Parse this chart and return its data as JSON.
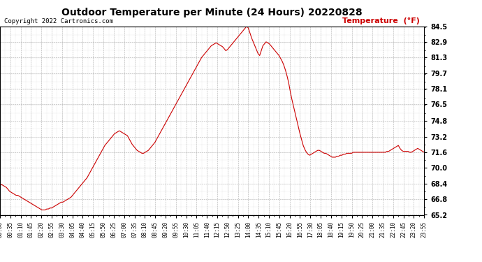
{
  "title": "Outdoor Temperature per Minute (24 Hours) 20220828",
  "copyright_text": "Copyright 2022 Cartronics.com",
  "legend_text": "Temperature  (°F)",
  "line_color": "#cc0000",
  "background_color": "#ffffff",
  "grid_color": "#999999",
  "yticks": [
    65.2,
    66.8,
    68.4,
    70.0,
    71.6,
    73.2,
    74.8,
    76.5,
    78.1,
    79.7,
    81.3,
    82.9,
    84.5
  ],
  "ylim": [
    65.2,
    84.5
  ],
  "xtick_labels": [
    "00:00",
    "00:35",
    "01:10",
    "01:45",
    "02:20",
    "02:55",
    "03:30",
    "04:05",
    "04:40",
    "05:15",
    "05:50",
    "06:25",
    "07:00",
    "07:35",
    "08:10",
    "08:45",
    "09:20",
    "09:55",
    "10:30",
    "11:05",
    "11:40",
    "12:15",
    "12:50",
    "13:25",
    "14:00",
    "14:35",
    "15:10",
    "15:45",
    "16:20",
    "16:55",
    "17:30",
    "18:05",
    "18:40",
    "19:15",
    "19:50",
    "20:25",
    "21:00",
    "21:35",
    "22:10",
    "22:45",
    "23:20",
    "23:55"
  ],
  "temperature_data": [
    68.2,
    68.3,
    68.2,
    68.1,
    68.0,
    67.8,
    67.6,
    67.5,
    67.4,
    67.3,
    67.2,
    67.2,
    67.1,
    67.0,
    66.9,
    66.8,
    66.7,
    66.6,
    66.5,
    66.4,
    66.3,
    66.2,
    66.1,
    66.0,
    65.9,
    65.8,
    65.7,
    65.7,
    65.7,
    65.8,
    65.8,
    65.9,
    65.9,
    66.0,
    66.1,
    66.2,
    66.3,
    66.4,
    66.5,
    66.5,
    66.6,
    66.7,
    66.8,
    66.9,
    67.0,
    67.2,
    67.4,
    67.6,
    67.8,
    68.0,
    68.2,
    68.4,
    68.6,
    68.8,
    69.0,
    69.3,
    69.6,
    69.9,
    70.2,
    70.5,
    70.8,
    71.1,
    71.4,
    71.7,
    72.0,
    72.3,
    72.5,
    72.7,
    72.9,
    73.1,
    73.3,
    73.5,
    73.6,
    73.7,
    73.8,
    73.7,
    73.6,
    73.5,
    73.4,
    73.3,
    73.0,
    72.7,
    72.4,
    72.2,
    72.0,
    71.8,
    71.7,
    71.6,
    71.5,
    71.5,
    71.6,
    71.7,
    71.8,
    72.0,
    72.2,
    72.4,
    72.6,
    72.9,
    73.2,
    73.5,
    73.8,
    74.1,
    74.4,
    74.7,
    75.0,
    75.3,
    75.6,
    75.9,
    76.2,
    76.5,
    76.8,
    77.1,
    77.4,
    77.7,
    78.0,
    78.3,
    78.6,
    78.9,
    79.2,
    79.5,
    79.8,
    80.1,
    80.4,
    80.7,
    81.0,
    81.3,
    81.5,
    81.7,
    81.9,
    82.1,
    82.3,
    82.5,
    82.6,
    82.7,
    82.8,
    82.7,
    82.6,
    82.5,
    82.4,
    82.2,
    82.0,
    82.1,
    82.3,
    82.5,
    82.7,
    82.9,
    83.1,
    83.3,
    83.5,
    83.7,
    83.9,
    84.1,
    84.3,
    84.5,
    84.3,
    83.8,
    83.3,
    82.9,
    82.5,
    82.1,
    81.7,
    81.5,
    82.0,
    82.5,
    82.7,
    82.9,
    82.8,
    82.7,
    82.5,
    82.3,
    82.1,
    81.9,
    81.7,
    81.5,
    81.2,
    80.9,
    80.5,
    80.0,
    79.4,
    78.7,
    77.8,
    77.0,
    76.3,
    75.6,
    74.9,
    74.2,
    73.5,
    72.9,
    72.3,
    71.9,
    71.6,
    71.4,
    71.3,
    71.4,
    71.5,
    71.6,
    71.7,
    71.8,
    71.8,
    71.7,
    71.6,
    71.5,
    71.5,
    71.4,
    71.3,
    71.2,
    71.1,
    71.1,
    71.1,
    71.2,
    71.2,
    71.3,
    71.3,
    71.4,
    71.4,
    71.5,
    71.5,
    71.5,
    71.5,
    71.6,
    71.6,
    71.6,
    71.6,
    71.6,
    71.6,
    71.6,
    71.6,
    71.6,
    71.6,
    71.6,
    71.6,
    71.6,
    71.6,
    71.6,
    71.6,
    71.6,
    71.6,
    71.6,
    71.6,
    71.6,
    71.7,
    71.7,
    71.8,
    71.9,
    72.0,
    72.1,
    72.2,
    72.3,
    72.0,
    71.8,
    71.7,
    71.7,
    71.7,
    71.7,
    71.6,
    71.6,
    71.7,
    71.8,
    71.9,
    72.0,
    71.9,
    71.8,
    71.7,
    71.6
  ]
}
